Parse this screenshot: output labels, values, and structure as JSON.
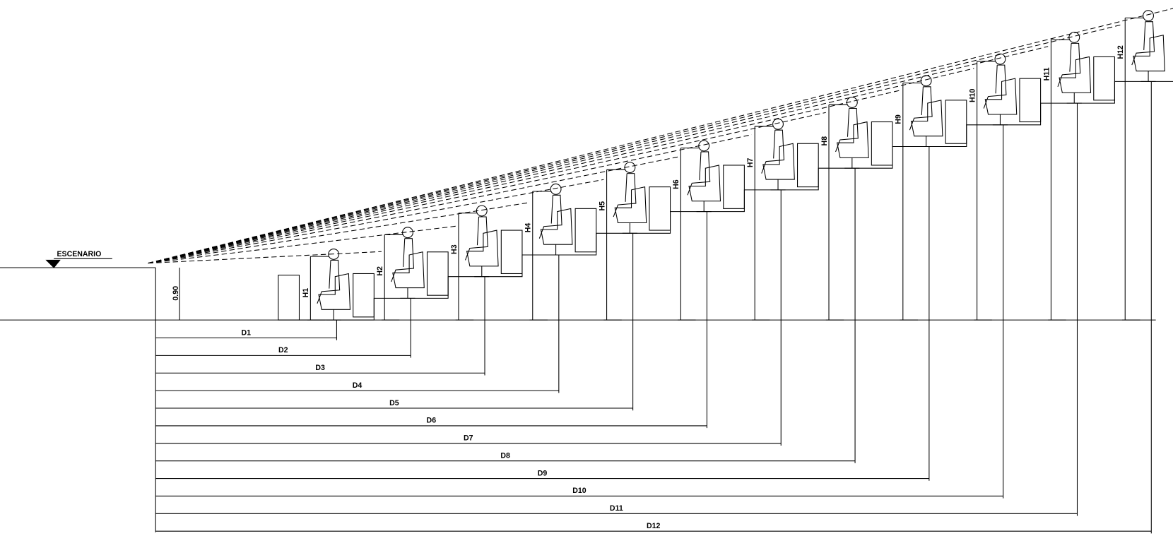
{
  "stage_label": "ESCENARIO",
  "stage_height": "0.90",
  "rows": [
    {
      "h": "H1",
      "d": "D1"
    },
    {
      "h": "H2",
      "d": "D2"
    },
    {
      "h": "H3",
      "d": "D3"
    },
    {
      "h": "H4",
      "d": "D4"
    },
    {
      "h": "H5",
      "d": "D5"
    },
    {
      "h": "H6",
      "d": "D6"
    },
    {
      "h": "H7",
      "d": "D7"
    },
    {
      "h": "H8",
      "d": "D8"
    },
    {
      "h": "H9",
      "d": "D9"
    },
    {
      "h": "H10",
      "d": "D10"
    },
    {
      "h": "H11",
      "d": "D11"
    },
    {
      "h": "H12",
      "d": "D12"
    }
  ]
}
